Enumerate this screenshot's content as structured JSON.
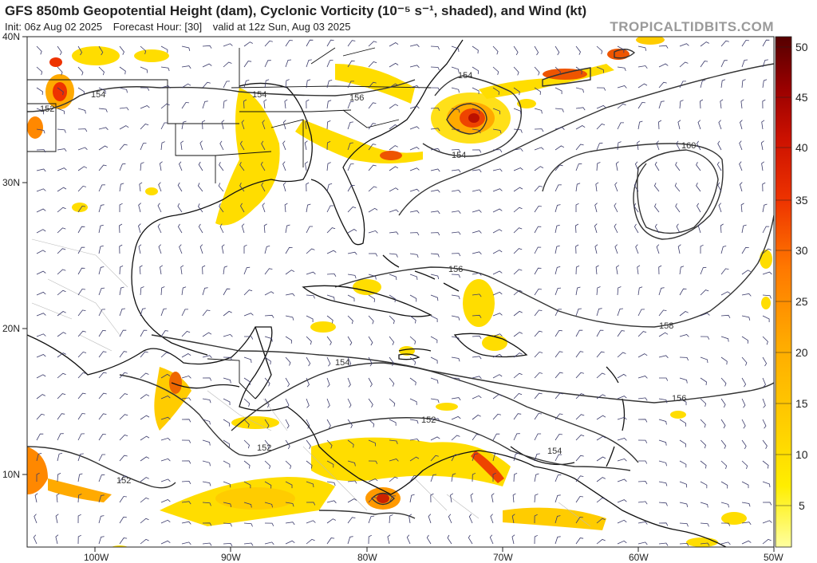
{
  "header": {
    "title": "GFS 850mb Geopotential Height (dam), Cyclonic Vorticity (10⁻⁵ s⁻¹, shaded), and Wind (kt)",
    "init": "Init: 06z Aug 02 2025",
    "forecast_hour": "Forecast Hour: [30]",
    "valid": "valid at 12z Sun, Aug 03 2025",
    "brand": "TROPICALTIDBITS.COM"
  },
  "axes": {
    "lat_labels": [
      "40N",
      "30N",
      "20N",
      "10N"
    ],
    "lon_labels": [
      "100W",
      "90W",
      "80W",
      "70W",
      "60W",
      "50W"
    ]
  },
  "colorbar": {
    "labels": [
      "50",
      "45",
      "40",
      "35",
      "30",
      "25",
      "20",
      "15",
      "10",
      "5"
    ],
    "colors": [
      "#ffff80",
      "#ffee00",
      "#ffcc00",
      "#ffaa00",
      "#ff8800",
      "#ff6600",
      "#ee3300",
      "#cc1100",
      "#aa0000",
      "#880000",
      "#660000"
    ]
  },
  "contours": {
    "labels": [
      "154",
      "154",
      "152",
      "156",
      "154",
      "154",
      "160",
      "156",
      "158",
      "154",
      "152",
      "152",
      "152",
      "154",
      "156"
    ]
  },
  "colors": {
    "land": "#ffffff",
    "coast": "#111111",
    "barb": "#3a3a6a",
    "contour": "#333333"
  }
}
